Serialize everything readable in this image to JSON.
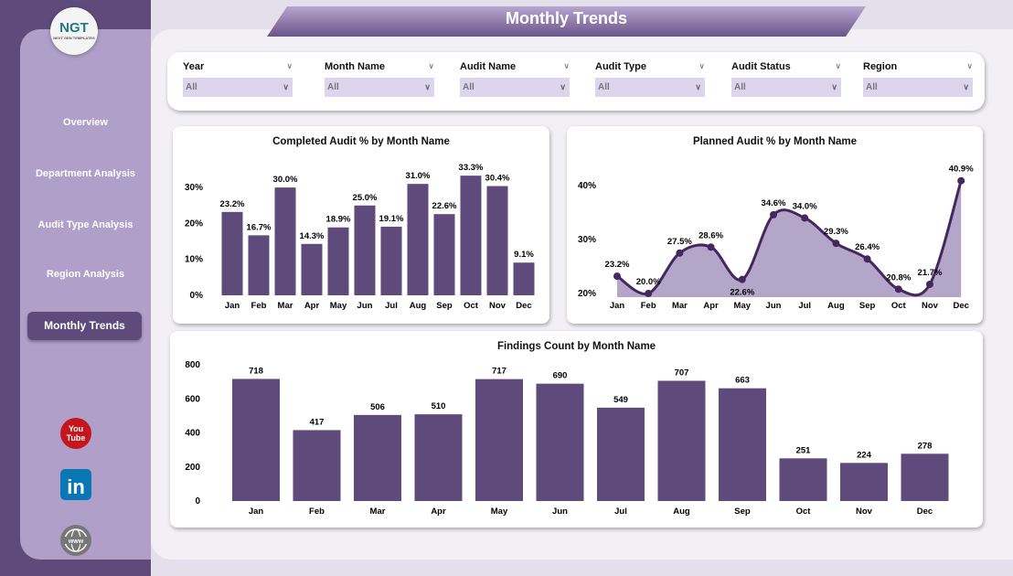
{
  "title": "Monthly Trends",
  "logo": {
    "text": "NGT",
    "sub": "NEXT GEN TEMPLATES"
  },
  "sidebar": {
    "items": [
      {
        "label": "Overview"
      },
      {
        "label": "Department Analysis"
      },
      {
        "label": "Audit Type Analysis"
      },
      {
        "label": "Region Analysis"
      },
      {
        "label": "Monthly Trends",
        "active": true
      }
    ],
    "social": [
      "youtube-icon",
      "linkedin-icon",
      "website-icon"
    ]
  },
  "filters": [
    {
      "label": "Year",
      "value": "All"
    },
    {
      "label": "Month Name",
      "value": "All"
    },
    {
      "label": "Audit Name",
      "value": "All"
    },
    {
      "label": "Audit Type",
      "value": "All"
    },
    {
      "label": "Audit Status",
      "value": "All"
    },
    {
      "label": "Region",
      "value": "All"
    }
  ],
  "colors": {
    "bar": "#5f4a7c",
    "line": "#45275f",
    "area": "#b3a6c8",
    "sidebar": "#5f4a7c"
  },
  "chart_data": [
    {
      "type": "bar",
      "title": "Completed Audit % by Month Name",
      "categories": [
        "Jan",
        "Feb",
        "Mar",
        "Apr",
        "May",
        "Jun",
        "Jul",
        "Aug",
        "Sep",
        "Oct",
        "Nov",
        "Dec"
      ],
      "values": [
        23.2,
        16.7,
        30.0,
        14.3,
        18.9,
        25.0,
        19.1,
        31.0,
        22.6,
        33.3,
        30.4,
        9.1
      ],
      "labels": [
        "23.2%",
        "16.7%",
        "30.0%",
        "14.3%",
        "18.9%",
        "25.0%",
        "19.1%",
        "31.0%",
        "22.6%",
        "33.3%",
        "30.4%",
        "9.1%"
      ],
      "yticks": [
        "0%",
        "10%",
        "20%",
        "30%"
      ],
      "ylim": [
        0,
        35
      ]
    },
    {
      "type": "area",
      "title": "Planned Audit % by Month Name",
      "categories": [
        "Jan",
        "Feb",
        "Mar",
        "Apr",
        "May",
        "Jun",
        "Jul",
        "Aug",
        "Sep",
        "Oct",
        "Nov",
        "Dec"
      ],
      "values": [
        23.2,
        20.0,
        27.5,
        28.6,
        22.6,
        34.6,
        34.0,
        29.3,
        26.4,
        20.8,
        21.7,
        40.9
      ],
      "labels": [
        "23.2%",
        "20.0%",
        "27.5%",
        "28.6%",
        "22.6%",
        "34.6%",
        "34.0%",
        "29.3%",
        "26.4%",
        "20.8%",
        "21.7%",
        "40.9%"
      ],
      "yticks": [
        "20%",
        "30%",
        "40%"
      ],
      "ylim": [
        20,
        42
      ]
    },
    {
      "type": "bar",
      "title": "Findings Count by Month Name",
      "categories": [
        "Jan",
        "Feb",
        "Mar",
        "Apr",
        "May",
        "Jun",
        "Jul",
        "Aug",
        "Sep",
        "Oct",
        "Nov",
        "Dec"
      ],
      "values": [
        718,
        417,
        506,
        510,
        717,
        690,
        549,
        707,
        663,
        251,
        224,
        278
      ],
      "labels": [
        "718",
        "417",
        "506",
        "510",
        "717",
        "690",
        "549",
        "707",
        "663",
        "251",
        "224",
        "278"
      ],
      "yticks": [
        "0",
        "200",
        "400",
        "600",
        "800"
      ],
      "ylim": [
        0,
        800
      ]
    }
  ]
}
